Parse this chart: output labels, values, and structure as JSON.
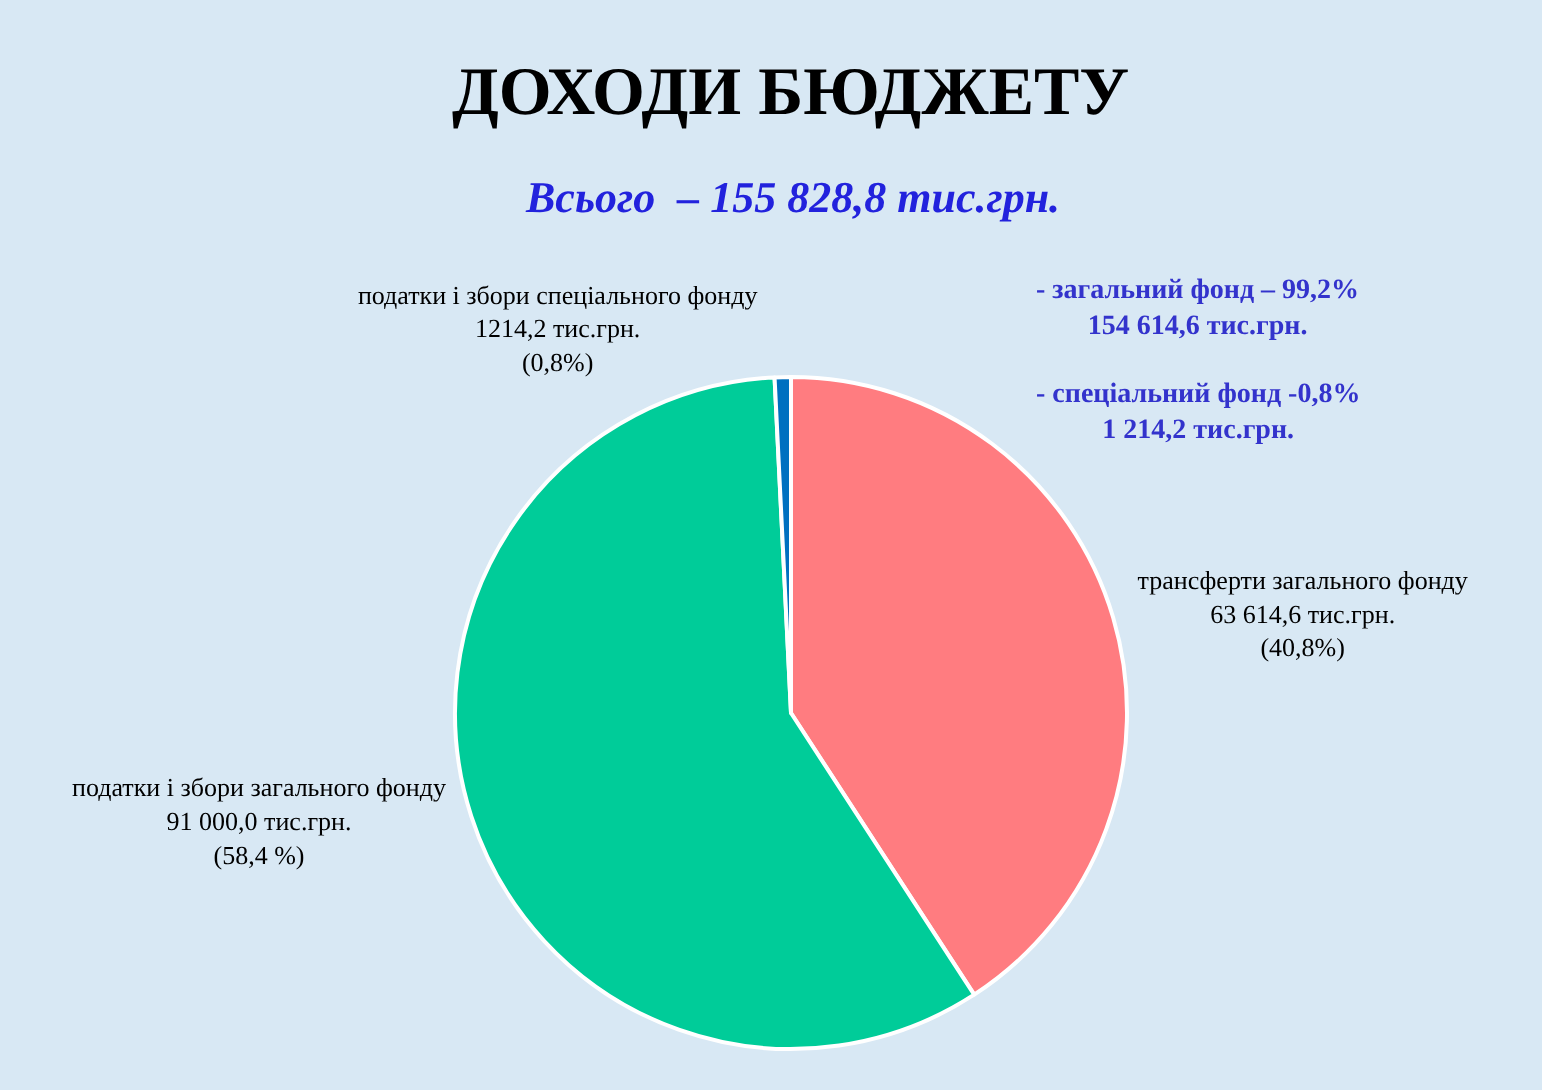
{
  "chart_data": {
    "type": "pie",
    "title": "ДОХОДИ БЮДЖЕТУ",
    "subtitle": "Всього  – 155 828,8 тис.грн.",
    "categories": [
      "трансферти загального фонду",
      "податки і збори загального фонду",
      "податки і збори спеціального фонду"
    ],
    "values": [
      63614.6,
      91000.0,
      1214.2
    ],
    "value_labels": [
      "63 614,6 тис.грн.\n(40,8%)",
      "91 000,0 тис.грн.\n(58,4 %)",
      "1214,2 тис.грн.\n(0,8%)"
    ],
    "colors": [
      "#ff7c80",
      "#00cc99",
      "#0070c0"
    ],
    "annotations": [
      "- загальний фонд – 99,2%\n154 614,6 тис.грн.",
      "- спеціальний фонд -0,8%\n1 214,2 тис.грн."
    ],
    "legend": false
  }
}
